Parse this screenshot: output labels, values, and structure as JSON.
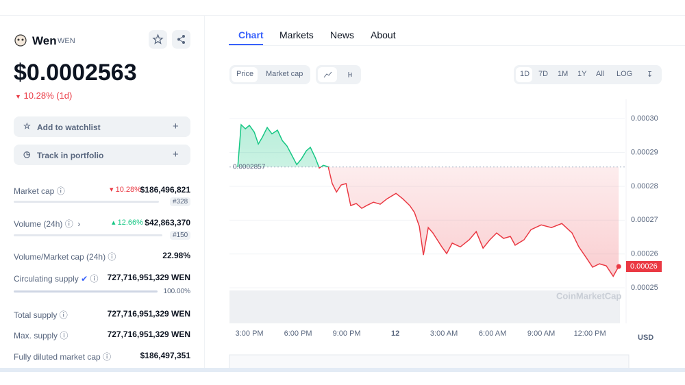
{
  "coin": {
    "name": "Wen",
    "symbol": "WEN",
    "price": "$0.0002563",
    "change": "10.28% (1d)"
  },
  "actions": [
    "Add to watchlist",
    "Track in portfolio"
  ],
  "stats": [
    {
      "label": "Market cap",
      "change": "10.28%",
      "value": "$186,496,821",
      "rank": "#328"
    },
    {
      "label": "Volume (24h)",
      "change": "12.66%",
      "value": "$42,863,370",
      "rank": "#150"
    },
    {
      "label": "Volume/Market cap (24h)",
      "value": "22.98%"
    },
    {
      "label": "Circulating supply",
      "value": "727,716,951,329 WEN",
      "percent": "100.00%"
    },
    {
      "label": "Total supply",
      "value": "727,716,951,329 WEN"
    },
    {
      "label": "Max. supply",
      "value": "727,716,951,329 WEN"
    },
    {
      "label": "Fully diluted market cap",
      "value": "$186,497,351"
    }
  ],
  "tabs": [
    "Chart",
    "Markets",
    "News",
    "About"
  ],
  "chart_toggle": [
    "Price",
    "Market cap"
  ],
  "ranges": [
    "1D",
    "7D",
    "1M",
    "1Y",
    "All",
    "LOG"
  ],
  "chart_data": {
    "type": "line",
    "color_up": "#16c784",
    "color_down": "#ea3943",
    "x": [
      14.28,
      14.49,
      14.75,
      15.0,
      15.3,
      15.55,
      15.8,
      16.1,
      16.39,
      16.73,
      17.03,
      17.32,
      17.58,
      17.92,
      18.21,
      18.51,
      18.76,
      19.06,
      19.31,
      19.56,
      19.86,
      20.11,
      20.37,
      20.66,
      20.96,
      21.25,
      21.59,
      21.93,
      22.23,
      22.65,
      23.07,
      23.49,
      24.04,
      24.46,
      24.89,
      25.18,
      25.48,
      25.73,
      26.03,
      26.32,
      26.87,
      27.17,
      27.51,
      28.01,
      28.56,
      28.99,
      29.41,
      29.83,
      30.25,
      30.68,
      31.1,
      31.39,
      31.94,
      32.37,
      33.0,
      33.63,
      34.27,
      34.9,
      35.32,
      35.75,
      36.17,
      36.59,
      37.01,
      37.44,
      37.78
    ],
    "values": [
      0.0002857,
      0.0002982,
      0.000297,
      0.000298,
      0.000296,
      0.0002925,
      0.0002945,
      0.0002974,
      0.0002955,
      0.0002966,
      0.0002935,
      0.0002919,
      0.0002895,
      0.0002864,
      0.0002881,
      0.0002905,
      0.0002915,
      0.0002885,
      0.0002854,
      0.0002862,
      0.0002858,
      0.0002808,
      0.0002783,
      0.0002804,
      0.0002808,
      0.0002743,
      0.0002749,
      0.0002735,
      0.0002743,
      0.0002753,
      0.0002747,
      0.0002763,
      0.0002779,
      0.0002763,
      0.0002743,
      0.0002723,
      0.0002682,
      0.0002597,
      0.0002678,
      0.0002662,
      0.0002621,
      0.0002601,
      0.0002632,
      0.0002621,
      0.0002642,
      0.0002666,
      0.0002617,
      0.0002642,
      0.0002662,
      0.0002646,
      0.0002652,
      0.0002626,
      0.0002642,
      0.0002672,
      0.0002686,
      0.0002678,
      0.000269,
      0.0002662,
      0.0002621,
      0.0002591,
      0.0002561,
      0.0002571,
      0.0002565,
      0.0002534,
      0.0002563
    ],
    "reference": 0.0002857,
    "last_label": {
      "value": 0.0002563,
      "label": "0.00026"
    },
    "xlim": [
      13.77,
      38.15
    ],
    "xticks": [
      {
        "value": 15,
        "label": "3:00 PM"
      },
      {
        "value": 18,
        "label": "6:00 PM"
      },
      {
        "value": 21,
        "label": "9:00 PM"
      },
      {
        "value": 24,
        "label": "12"
      },
      {
        "value": 27,
        "label": "3:00 AM"
      },
      {
        "value": 30,
        "label": "6:00 AM"
      },
      {
        "value": 33,
        "label": "9:00 AM"
      },
      {
        "value": 36,
        "label": "12:00 PM"
      }
    ],
    "ylim": [
      0.0002395,
      0.0003057
    ],
    "yticks": [
      {
        "value": 0.00025,
        "label": "0.00025"
      },
      {
        "value": 0.00026,
        "label": "0.00026"
      },
      {
        "value": 0.00027,
        "label": "0.00027"
      },
      {
        "value": 0.00028,
        "label": "0.00028"
      },
      {
        "value": 0.00029,
        "label": "0.00029"
      },
      {
        "value": 0.0003,
        "label": "0.00030"
      }
    ],
    "grid": true,
    "y_unit": "USD",
    "watermark": "CoinMarketCap"
  }
}
